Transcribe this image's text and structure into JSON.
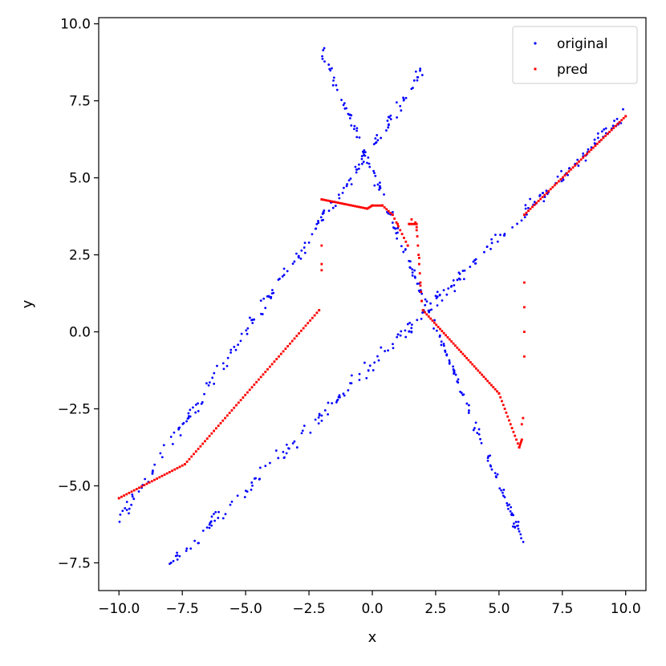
{
  "chart_data": {
    "type": "scatter",
    "xlabel": "x",
    "ylabel": "y",
    "xlim": [
      -10.8,
      10.8
    ],
    "ylim": [
      -8.4,
      10.2
    ],
    "xticks": [
      -10.0,
      -7.5,
      -5.0,
      -2.5,
      0.0,
      2.5,
      5.0,
      7.5,
      10.0
    ],
    "yticks": [
      -7.5,
      -5.0,
      -2.5,
      0.0,
      2.5,
      5.0,
      7.5,
      10.0
    ],
    "xtick_labels": [
      "−10.0",
      "−7.5",
      "−5.0",
      "−2.5",
      "0.0",
      "2.5",
      "5.0",
      "7.5",
      "10.0"
    ],
    "ytick_labels": [
      "−7.5",
      "−5.0",
      "−2.5",
      "0.0",
      "2.5",
      "5.0",
      "7.5",
      "10.0"
    ],
    "grid": false,
    "legend_position": "top-right",
    "series": [
      {
        "name": "original",
        "color": "#0000ff",
        "marker": "dot",
        "segments": [
          {
            "x0": -10.0,
            "y0": -6.1,
            "x1": 2.0,
            "y1": 8.5,
            "n": 180,
            "noise": 0.18
          },
          {
            "x0": -2.0,
            "y0": 9.2,
            "x1": 6.0,
            "y1": -6.9,
            "n": 170,
            "noise": 0.18
          },
          {
            "x0": -8.0,
            "y0": -7.6,
            "x1": 10.0,
            "y1": 7.1,
            "n": 230,
            "noise": 0.18
          }
        ]
      },
      {
        "name": "pred",
        "color": "#ff0000",
        "marker": "square",
        "points": [
          [
            -10.0,
            -5.4
          ],
          [
            -7.4,
            -4.3
          ],
          [
            -2.1,
            0.7
          ],
          [
            -2.0,
            2.2
          ],
          [
            -2.0,
            2.0
          ],
          [
            -2.0,
            2.8
          ],
          [
            -2.0,
            4.3
          ],
          [
            -0.2,
            4.0
          ],
          [
            0.0,
            4.1
          ],
          [
            0.4,
            4.1
          ],
          [
            0.8,
            3.8
          ],
          [
            1.0,
            3.5
          ],
          [
            1.4,
            2.8
          ],
          [
            1.45,
            3.5
          ],
          [
            1.55,
            3.65
          ],
          [
            1.7,
            3.55
          ],
          [
            1.75,
            3.3
          ],
          [
            1.85,
            2.4
          ],
          [
            1.9,
            1.5
          ],
          [
            1.95,
            1.0
          ],
          [
            2.0,
            0.7
          ],
          [
            5.0,
            -2.0
          ],
          [
            5.8,
            -3.75
          ],
          [
            5.9,
            -3.5
          ],
          [
            5.9,
            -3.0
          ],
          [
            5.95,
            -2.8
          ],
          [
            6.0,
            -0.8
          ],
          [
            6.0,
            0.0
          ],
          [
            6.0,
            0.8
          ],
          [
            6.0,
            1.6
          ],
          [
            6.0,
            3.8
          ],
          [
            10.0,
            7.0
          ]
        ],
        "segments": [
          {
            "x0": -10.0,
            "y0": -5.4,
            "x1": -7.4,
            "y1": -4.3,
            "n": 26
          },
          {
            "x0": -7.4,
            "y0": -4.3,
            "x1": -2.1,
            "y1": 0.7,
            "n": 60
          },
          {
            "x0": -2.0,
            "y0": 4.3,
            "x1": -0.2,
            "y1": 4.0,
            "n": 22
          },
          {
            "x0": -0.2,
            "y0": 4.0,
            "x1": 0.0,
            "y1": 4.1,
            "n": 4
          },
          {
            "x0": 0.0,
            "y0": 4.1,
            "x1": 0.4,
            "y1": 4.1,
            "n": 5
          },
          {
            "x0": 0.4,
            "y0": 4.1,
            "x1": 0.8,
            "y1": 3.8,
            "n": 5
          },
          {
            "x0": 0.8,
            "y0": 3.8,
            "x1": 1.4,
            "y1": 2.8,
            "n": 8
          },
          {
            "x0": 1.45,
            "y0": 3.5,
            "x1": 1.75,
            "y1": 3.5,
            "n": 5
          },
          {
            "x0": 1.75,
            "y0": 3.4,
            "x1": 1.95,
            "y1": 1.0,
            "n": 8
          },
          {
            "x0": 2.0,
            "y0": 0.7,
            "x1": 5.0,
            "y1": -2.0,
            "n": 40
          },
          {
            "x0": 5.0,
            "y0": -2.0,
            "x1": 5.8,
            "y1": -3.75,
            "n": 14
          },
          {
            "x0": 5.8,
            "y0": -3.75,
            "x1": 5.9,
            "y1": -3.5,
            "n": 4
          },
          {
            "x0": 6.0,
            "y0": 3.8,
            "x1": 10.0,
            "y1": 7.0,
            "n": 50
          }
        ]
      }
    ]
  }
}
